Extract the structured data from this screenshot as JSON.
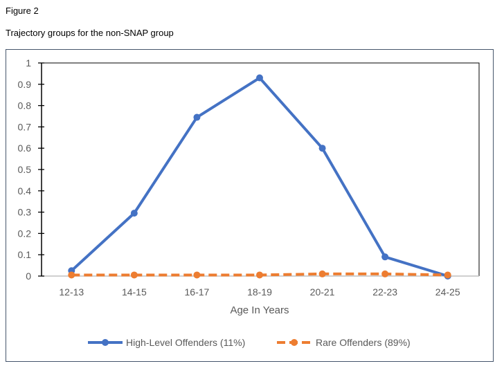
{
  "figure_label": "Figure 2",
  "caption": "Trajectory groups for the non-SNAP group",
  "chart_data": {
    "type": "line",
    "title": "",
    "xlabel": "Age In Years",
    "ylabel": "",
    "categories": [
      "12-13",
      "14-15",
      "16-17",
      "18-19",
      "20-21",
      "22-23",
      "24-25"
    ],
    "ylim": [
      0,
      1
    ],
    "yticks": [
      "0",
      "0.1",
      "0.2",
      "0.3",
      "0.4",
      "0.5",
      "0.6",
      "0.7",
      "0.8",
      "0.9",
      "1"
    ],
    "legend_position": "bottom",
    "series": [
      {
        "name": "High-Level Offenders (11%)",
        "color": "#4472C4",
        "style": "solid",
        "values": [
          0.025,
          0.295,
          0.745,
          0.93,
          0.6,
          0.09,
          0.0
        ]
      },
      {
        "name": "Rare Offenders (89%)",
        "color": "#ED7D31",
        "style": "dashed",
        "values": [
          0.005,
          0.005,
          0.005,
          0.005,
          0.01,
          0.01,
          0.005
        ]
      }
    ]
  }
}
